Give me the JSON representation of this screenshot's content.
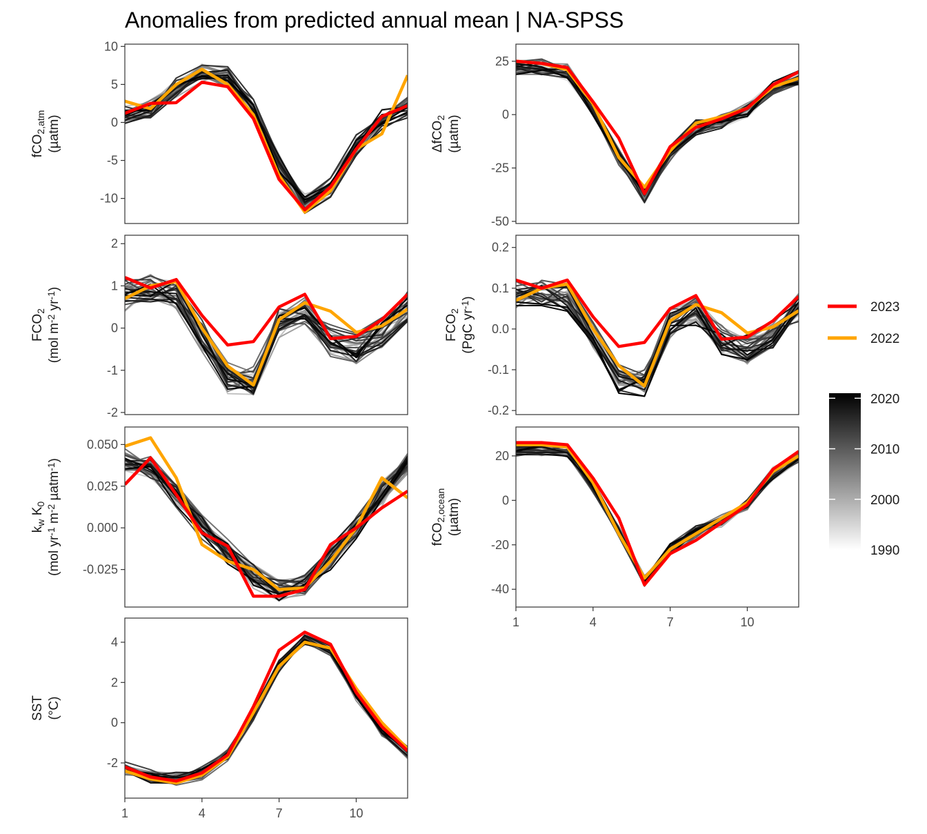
{
  "title": "Anomalies from predicted annual mean | NA-SPSS",
  "colors": {
    "y2023": "#ff0000",
    "y2022": "#ffa500",
    "hist_light": "#e6e6e6",
    "hist_dark": "#000000"
  },
  "legend": {
    "highlight": [
      {
        "label": "2023",
        "color": "#ff0000"
      },
      {
        "label": "2022",
        "color": "#ffa500"
      }
    ],
    "colorbar": {
      "ticks": [
        "2020",
        "2010",
        "2000",
        "1990"
      ],
      "range": [
        1990,
        2021
      ]
    }
  },
  "chart_data": [
    {
      "type": "line",
      "panel": "fco2_atm",
      "ylabel_parts": [
        "fCO",
        "2,atm",
        "(µatm)"
      ],
      "x": [
        1,
        2,
        3,
        4,
        5,
        6,
        7,
        8,
        9,
        10,
        11,
        12
      ],
      "xlim": [
        1,
        12
      ],
      "ylim": [
        -13.3,
        10.3
      ],
      "yticks": [
        10,
        5,
        0,
        -5,
        -10
      ],
      "ytick_labels": [
        "10",
        "5",
        "0",
        "-5",
        "-10"
      ],
      "xticks": [],
      "xtick_labels": [],
      "highlight": [
        {
          "name": "2023",
          "values": [
            1.2,
            2.5,
            2.6,
            5.3,
            4.7,
            0.5,
            -7.5,
            -11.5,
            -8.5,
            -3.5,
            0.8,
            2.2
          ]
        },
        {
          "name": "2022",
          "values": [
            2.8,
            1.8,
            5.0,
            7.0,
            5.0,
            1.0,
            -7.0,
            -11.8,
            -9.0,
            -3.5,
            -1.5,
            6.2
          ]
        }
      ],
      "background": {
        "years": [
          1990,
          2021
        ],
        "base": [
          1.0,
          1.5,
          4.5,
          6.5,
          6.0,
          2.0,
          -5.5,
          -10.5,
          -8.5,
          -3.0,
          0.5,
          2.0
        ],
        "spread": 1.8
      }
    },
    {
      "type": "line",
      "panel": "delta_fco2",
      "ylabel_parts": [
        "ΔfCO",
        "2",
        "(µatm)"
      ],
      "x": [
        1,
        2,
        3,
        4,
        5,
        6,
        7,
        8,
        9,
        10,
        11,
        12
      ],
      "xlim": [
        1,
        12
      ],
      "ylim": [
        -51,
        33
      ],
      "yticks": [
        25,
        0,
        -25,
        -50
      ],
      "ytick_labels": [
        "25",
        "0",
        "-25",
        "-50"
      ],
      "xticks": [],
      "xtick_labels": [],
      "highlight": [
        {
          "name": "2023",
          "values": [
            25,
            24,
            22,
            6,
            -11,
            -37,
            -15,
            -6,
            -2,
            3,
            14,
            20
          ]
        },
        {
          "name": "2022",
          "values": [
            25,
            24,
            21,
            5,
            -20,
            -34,
            -17,
            -4,
            -1,
            3,
            13,
            17
          ]
        }
      ],
      "background": {
        "years": [
          1990,
          2021
        ],
        "base": [
          22,
          22,
          20,
          2,
          -20,
          -38,
          -18,
          -6,
          -3,
          2,
          12,
          17
        ],
        "spread": 5
      }
    },
    {
      "type": "line",
      "panel": "fco2_flux_m2",
      "ylabel_parts": [
        "FCO",
        "2",
        "(mol m",
        "-2",
        " yr",
        "-1",
        ")"
      ],
      "x": [
        1,
        2,
        3,
        4,
        5,
        6,
        7,
        8,
        9,
        10,
        11,
        12
      ],
      "xlim": [
        1,
        12
      ],
      "ylim": [
        -2.05,
        2.2
      ],
      "yticks": [
        2,
        1,
        0,
        -1,
        -2
      ],
      "ytick_labels": [
        "2",
        "1",
        "0",
        "-1",
        "-2"
      ],
      "xticks": [],
      "xtick_labels": [],
      "highlight": [
        {
          "name": "2023",
          "values": [
            1.2,
            0.95,
            1.15,
            0.3,
            -0.4,
            -0.32,
            0.5,
            0.8,
            -0.25,
            -0.2,
            0.2,
            0.8
          ]
        },
        {
          "name": "2022",
          "values": [
            0.7,
            1.0,
            1.1,
            0.0,
            -0.9,
            -1.35,
            0.2,
            0.6,
            0.4,
            -0.1,
            0.05,
            0.45
          ]
        }
      ],
      "background": {
        "years": [
          1990,
          2021
        ],
        "base": [
          0.8,
          0.9,
          0.8,
          -0.2,
          -1.2,
          -1.3,
          0.1,
          0.4,
          -0.3,
          -0.5,
          -0.1,
          0.5
        ],
        "spread": 0.5
      }
    },
    {
      "type": "line",
      "panel": "fco2_flux_pg",
      "ylabel_parts": [
        "FCO",
        "2",
        "(PgC yr",
        "-1",
        ")"
      ],
      "x": [
        1,
        2,
        3,
        4,
        5,
        6,
        7,
        8,
        9,
        10,
        11,
        12
      ],
      "xlim": [
        1,
        12
      ],
      "ylim": [
        -0.21,
        0.23
      ],
      "yticks": [
        0.2,
        0.1,
        0.0,
        -0.1,
        -0.2
      ],
      "ytick_labels": [
        "0.2",
        "0.1",
        "0.0",
        "-0.1",
        "-0.2"
      ],
      "xticks": [],
      "xtick_labels": [],
      "highlight": [
        {
          "name": "2023",
          "values": [
            0.12,
            0.1,
            0.12,
            0.03,
            -0.043,
            -0.033,
            0.05,
            0.082,
            -0.025,
            -0.02,
            0.02,
            0.08
          ]
        },
        {
          "name": "2022",
          "values": [
            0.07,
            0.1,
            0.11,
            0.0,
            -0.09,
            -0.14,
            0.02,
            0.06,
            0.04,
            -0.01,
            0.005,
            0.045
          ]
        }
      ],
      "background": {
        "years": [
          1990,
          2021
        ],
        "base": [
          0.08,
          0.09,
          0.08,
          -0.02,
          -0.12,
          -0.13,
          0.01,
          0.04,
          -0.03,
          -0.05,
          -0.01,
          0.05
        ],
        "spread": 0.05
      }
    },
    {
      "type": "line",
      "panel": "kw_k0",
      "ylabel_parts": [
        "k",
        "w",
        " K",
        "0",
        "(mol yr",
        "-1",
        " m",
        "-2",
        " µatm",
        "-1",
        ")"
      ],
      "x": [
        1,
        2,
        3,
        4,
        5,
        6,
        7,
        8,
        9,
        10,
        11,
        12
      ],
      "xlim": [
        1,
        12
      ],
      "ylim": [
        -0.0475,
        0.0605
      ],
      "yticks": [
        0.05,
        0.025,
        0.0,
        -0.025
      ],
      "ytick_labels": [
        "0.050",
        "0.025",
        "0.000",
        "-0.025"
      ],
      "xticks": [],
      "xtick_labels": [],
      "highlight": [
        {
          "name": "2023",
          "values": [
            0.026,
            0.042,
            0.02,
            -0.003,
            -0.011,
            -0.041,
            -0.041,
            -0.037,
            -0.01,
            0.0,
            0.012,
            0.022
          ]
        },
        {
          "name": "2022",
          "values": [
            0.049,
            0.054,
            0.03,
            -0.01,
            -0.02,
            -0.025,
            -0.037,
            -0.036,
            -0.02,
            0.0,
            0.03,
            0.018
          ]
        }
      ],
      "background": {
        "years": [
          1990,
          2021
        ],
        "base": [
          0.04,
          0.035,
          0.02,
          0.0,
          -0.015,
          -0.03,
          -0.038,
          -0.035,
          -0.018,
          0.0,
          0.02,
          0.038
        ],
        "spread": 0.01
      }
    },
    {
      "type": "line",
      "panel": "fco2_ocean",
      "ylabel_parts": [
        "fCO",
        "2,ocean",
        "(µatm)"
      ],
      "x": [
        1,
        2,
        3,
        4,
        5,
        6,
        7,
        8,
        9,
        10,
        11,
        12
      ],
      "xlim": [
        1,
        12
      ],
      "ylim": [
        -48,
        33
      ],
      "yticks": [
        20,
        0,
        -20,
        -40
      ],
      "ytick_labels": [
        "20",
        "0",
        "-20",
        "-40"
      ],
      "xticks": [
        1,
        4,
        7,
        10
      ],
      "xtick_labels": [
        "1",
        "4",
        "7",
        "10"
      ],
      "highlight": [
        {
          "name": "2023",
          "values": [
            26,
            26,
            25,
            10,
            -8,
            -38,
            -24,
            -18,
            -10,
            -2,
            14,
            22
          ]
        },
        {
          "name": "2022",
          "values": [
            25,
            25,
            24,
            8,
            -15,
            -35,
            -22,
            -15,
            -8,
            -1,
            13,
            20
          ]
        }
      ],
      "background": {
        "years": [
          1990,
          2021
        ],
        "base": [
          23,
          23,
          22,
          6,
          -14,
          -36,
          -22,
          -14,
          -9,
          -2,
          12,
          20
        ],
        "spread": 4
      }
    },
    {
      "type": "line",
      "panel": "sst",
      "ylabel_parts": [
        "SST",
        "(°C)"
      ],
      "x": [
        1,
        2,
        3,
        4,
        5,
        6,
        7,
        8,
        9,
        10,
        11,
        12
      ],
      "xlim": [
        1,
        12
      ],
      "ylim": [
        -3.75,
        5.2
      ],
      "yticks": [
        4,
        2,
        0,
        -2
      ],
      "ytick_labels": [
        "4",
        "2",
        "0",
        "-2"
      ],
      "xticks": [
        1,
        4,
        7,
        10
      ],
      "xtick_labels": [
        "1",
        "4",
        "7",
        "10"
      ],
      "highlight": [
        {
          "name": "2023",
          "values": [
            -2.2,
            -2.7,
            -2.9,
            -2.5,
            -1.6,
            0.8,
            3.6,
            4.5,
            3.9,
            1.5,
            -0.2,
            -1.4
          ]
        },
        {
          "name": "2022",
          "values": [
            -2.4,
            -2.8,
            -3.0,
            -2.6,
            -1.7,
            0.5,
            2.8,
            4.0,
            3.7,
            1.7,
            0.0,
            -1.3
          ]
        }
      ],
      "background": {
        "years": [
          1990,
          2021
        ],
        "base": [
          -2.3,
          -2.7,
          -2.8,
          -2.5,
          -1.6,
          0.4,
          2.8,
          4.1,
          3.5,
          1.4,
          -0.3,
          -1.5
        ],
        "spread": 0.45
      }
    }
  ]
}
